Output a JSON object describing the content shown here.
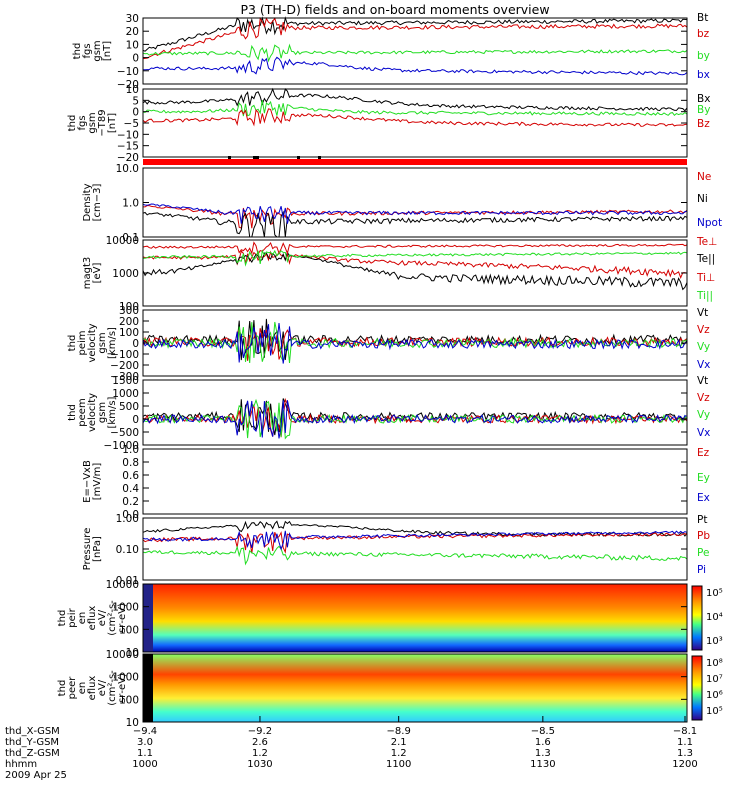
{
  "title": "P3 (TH-D) fields and on-board moments overview",
  "date": "2009 Apr 25",
  "colors": {
    "black": "#000000",
    "red": "#d40000",
    "green": "#22dd22",
    "blue": "#0000cc",
    "banner_red": "#ff0000"
  },
  "chart_data": [
    {
      "type": "line",
      "id": "fgs_gsm",
      "ylabel": [
        "thd",
        "fgs",
        "gsm",
        "[nT]"
      ],
      "ylim": [
        -20,
        30
      ],
      "yticks": [
        "30",
        "20",
        "10",
        "0",
        "−10",
        "−20"
      ],
      "series": [
        {
          "name": "Bt",
          "color": "#000000"
        },
        {
          "name": "bz",
          "color": "#d40000"
        },
        {
          "name": "by",
          "color": "#22dd22"
        },
        {
          "name": "bx",
          "color": "#0000cc"
        }
      ]
    },
    {
      "type": "line",
      "id": "fgs_gsm_t89",
      "ylabel": [
        "thd",
        "fgs",
        "gsm",
        "−T89",
        "[nT]"
      ],
      "ylim": [
        -20,
        10
      ],
      "yticks": [
        "10",
        "5",
        "0",
        "−5",
        "−10",
        "−15",
        "−20"
      ],
      "series": [
        {
          "name": "Bx",
          "color": "#000000"
        },
        {
          "name": "By",
          "color": "#22dd22"
        },
        {
          "name": "Bz",
          "color": "#d40000"
        }
      ]
    },
    {
      "type": "line",
      "id": "density",
      "ylabel": [
        "Density",
        "[cm−3]"
      ],
      "scale": "log",
      "ylim": [
        0.1,
        10
      ],
      "yticks": [
        "10.0",
        "1.0",
        "0.1"
      ],
      "series": [
        {
          "name": "Ne",
          "color": "#d40000"
        },
        {
          "name": "Ni",
          "color": "#000000"
        },
        {
          "name": "Npot",
          "color": "#0000cc"
        }
      ]
    },
    {
      "type": "line",
      "id": "temperature",
      "ylabel": [
        "magt3",
        "[eV]"
      ],
      "scale": "log",
      "ylim": [
        100,
        10000
      ],
      "yticks": [
        "10000",
        "1000",
        "100"
      ],
      "series": [
        {
          "name": "Te⊥",
          "color": "#d40000"
        },
        {
          "name": "Te||",
          "color": "#000000"
        },
        {
          "name": "Ti⊥",
          "color": "#d40000"
        },
        {
          "name": "Ti||",
          "color": "#22dd22"
        }
      ]
    },
    {
      "type": "line",
      "id": "peim_velocity",
      "ylabel": [
        "thd",
        "peim",
        "velocity",
        "gsm",
        "[km/s]"
      ],
      "ylim": [
        -300,
        300
      ],
      "yticks": [
        "300",
        "200",
        "100",
        "0",
        "−100",
        "−200",
        "−300"
      ],
      "series": [
        {
          "name": "Vt",
          "color": "#000000"
        },
        {
          "name": "Vz",
          "color": "#d40000"
        },
        {
          "name": "Vy",
          "color": "#22dd22"
        },
        {
          "name": "Vx",
          "color": "#0000cc"
        }
      ]
    },
    {
      "type": "line",
      "id": "peem_velocity",
      "ylabel": [
        "thd",
        "peem",
        "velocity",
        "gsm",
        "[km/s]"
      ],
      "ylim": [
        -1000,
        1500
      ],
      "yticks": [
        "1500",
        "1000",
        "500",
        "0",
        "−500",
        "−1000"
      ],
      "series": [
        {
          "name": "Vt",
          "color": "#000000"
        },
        {
          "name": "Vz",
          "color": "#d40000"
        },
        {
          "name": "Vy",
          "color": "#22dd22"
        },
        {
          "name": "Vx",
          "color": "#0000cc"
        }
      ]
    },
    {
      "type": "line",
      "id": "e_vxb",
      "ylabel": [
        "E=−VxB",
        "[mV/m]"
      ],
      "ylim": [
        0,
        1
      ],
      "yticks": [
        "1.0",
        "0.8",
        "0.6",
        "0.4",
        "0.2",
        "0.0"
      ],
      "series": [
        {
          "name": "Ez",
          "color": "#d40000"
        },
        {
          "name": "Ey",
          "color": "#22dd22"
        },
        {
          "name": "Ex",
          "color": "#0000cc"
        }
      ]
    },
    {
      "type": "line",
      "id": "pressure",
      "ylabel": [
        "Pressure",
        "[nPa]"
      ],
      "scale": "log",
      "ylim": [
        0.01,
        1
      ],
      "yticks": [
        "1.00",
        "0.10",
        "0.01"
      ],
      "series": [
        {
          "name": "Pt",
          "color": "#000000"
        },
        {
          "name": "Pb",
          "color": "#d40000"
        },
        {
          "name": "Pe",
          "color": "#22dd22"
        },
        {
          "name": "Pi",
          "color": "#0000cc"
        }
      ]
    },
    {
      "type": "heatmap",
      "id": "peir_flux",
      "ylabel": [
        "thd",
        "peir",
        "en",
        "eflux",
        "eV/",
        "(cm²‑s‑",
        "sr‑eV)"
      ],
      "scale": "log",
      "ylim": [
        10,
        10000
      ],
      "yticks": [
        "10000",
        "1000",
        "100",
        "10"
      ],
      "colorbar": {
        "labels": [
          "10⁵",
          "10⁴",
          "10³"
        ],
        "scale": "log"
      }
    },
    {
      "type": "heatmap",
      "id": "peer_flux",
      "ylabel": [
        "thd",
        "peer",
        "en",
        "eflux",
        "eV/",
        "(cm²‑s‑",
        "sr‑eV)"
      ],
      "scale": "log",
      "ylim": [
        10,
        10000
      ],
      "yticks": [
        "10000",
        "1000",
        "100",
        "10"
      ],
      "colorbar": {
        "labels": [
          "10⁸",
          "10⁷",
          "10⁶",
          "10⁵"
        ],
        "scale": "log"
      }
    }
  ],
  "x_axis": {
    "rows": [
      {
        "name": "thd_X‑GSM",
        "values": [
          "−9.4",
          "−9.2",
          "−8.9",
          "−8.5",
          "−8.1"
        ]
      },
      {
        "name": "thd_Y‑GSM",
        "values": [
          "3.0",
          "2.6",
          "2.1",
          "1.6",
          "1.1"
        ]
      },
      {
        "name": "thd_Z‑GSM",
        "values": [
          "1.1",
          "1.2",
          "1.2",
          "1.3",
          "1.3"
        ]
      },
      {
        "name": "hhmm",
        "values": [
          "1000",
          "1030",
          "1100",
          "1130",
          "1200"
        ]
      }
    ]
  }
}
